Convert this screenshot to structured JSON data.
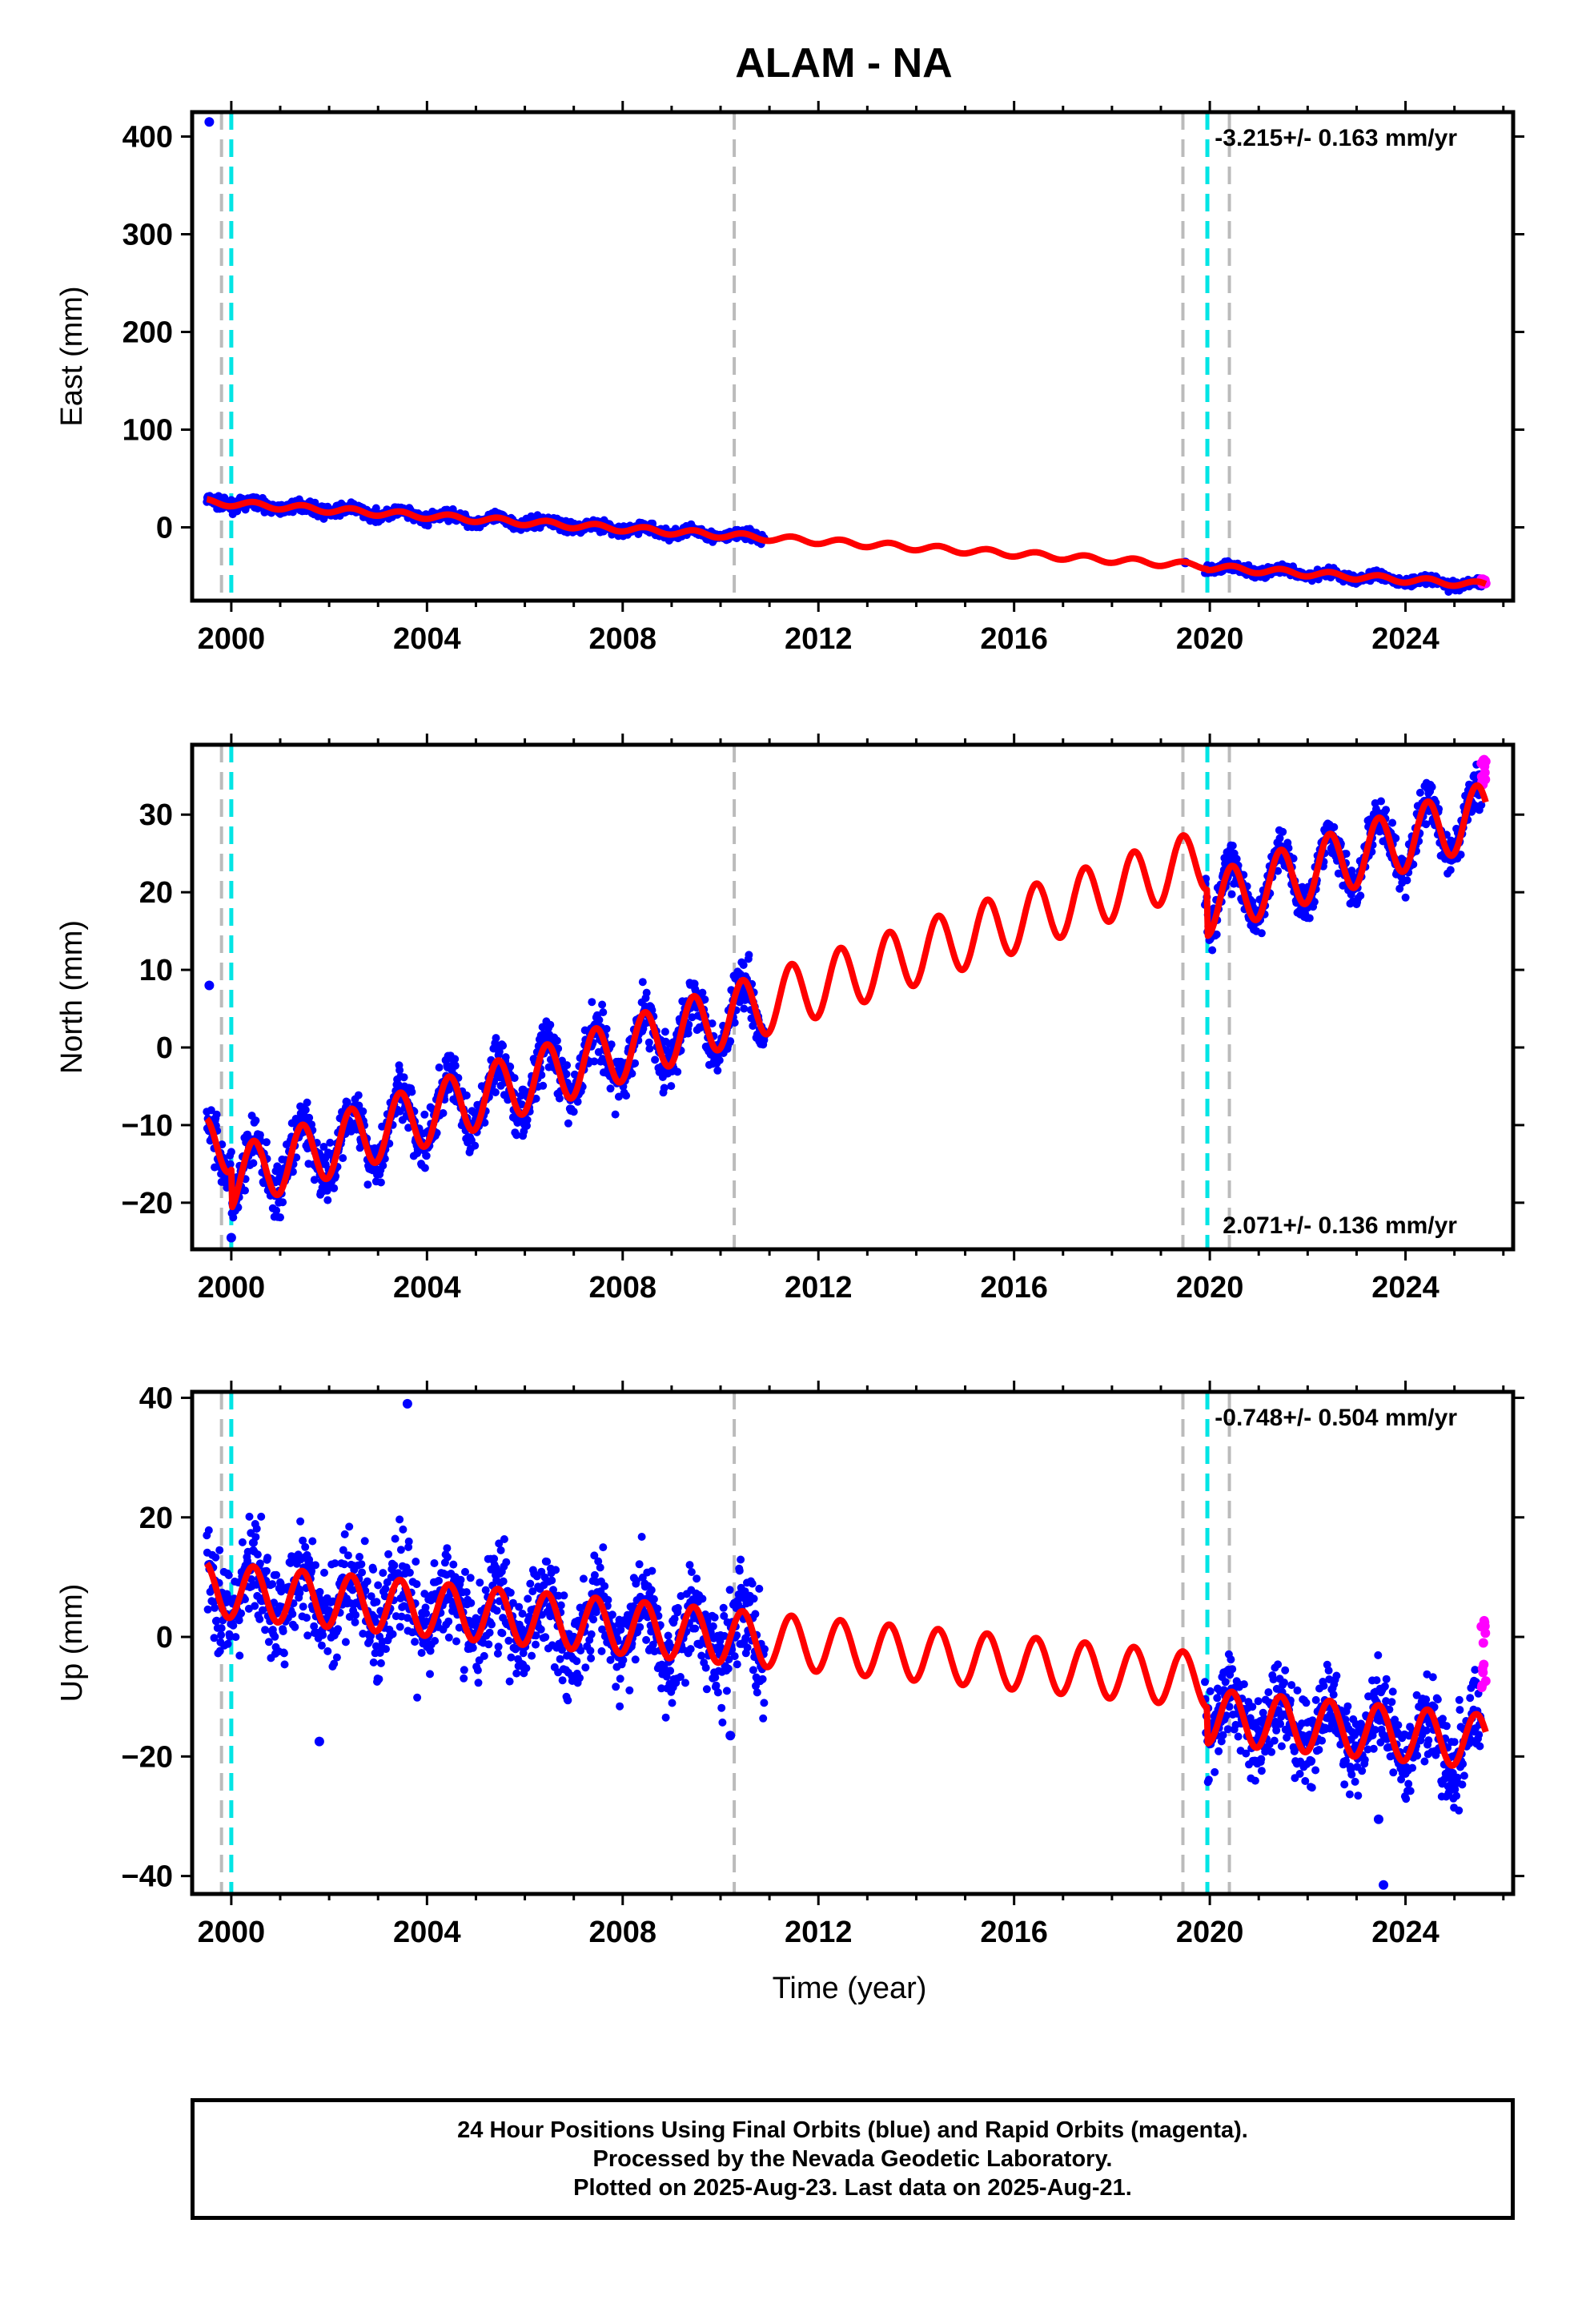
{
  "chart_data": {
    "title": "ALAM - NA",
    "type": "scatter",
    "xlabel": "Time (year)",
    "xlim": [
      1999.2,
      2026.2
    ],
    "xticks": [
      2000,
      2004,
      2008,
      2012,
      2016,
      2020,
      2024
    ],
    "events": {
      "gray_dashed": [
        1999.8,
        2010.28,
        2019.45,
        2020.4
      ],
      "cyan_dashed": [
        2000.0,
        2019.95
      ]
    },
    "colors": {
      "final": "#0000ff",
      "rapid": "#ff00ff",
      "fit": "#ff0000",
      "gray_event": "#bbbbbb",
      "cyan_event": "#00e5e5"
    },
    "panels": [
      {
        "ylabel": "East (mm)",
        "ylim": [
          -75,
          425
        ],
        "yticks": [
          0,
          100,
          200,
          300,
          400
        ],
        "rate_text": "-3.215+/- 0.163 mm/yr",
        "rate_position": "top-right",
        "offsets": [
          {
            "epoch": 1999.55,
            "value": 415
          },
          {
            "epoch": 2019.5,
            "value": -36
          }
        ],
        "trend": {
          "t0": 1999.5,
          "y0": 26,
          "slope": -3.215,
          "annual_amp": 3,
          "jumps": [
            {
              "epoch": 2019.95,
              "size": -1
            }
          ]
        },
        "data_spans": [
          {
            "start": 1999.5,
            "end": 2010.9,
            "scatter": 4
          },
          {
            "start": 2019.9,
            "end": 2025.55,
            "scatter": 3.5
          }
        ],
        "rapid": {
          "start": 2025.55,
          "end": 2025.64,
          "y_range": [
            -58,
            -53
          ]
        }
      },
      {
        "ylabel": "North (mm)",
        "ylim": [
          -26,
          39
        ],
        "yticks": [
          -20,
          -10,
          0,
          10,
          20,
          30
        ],
        "rate_text": "2.071+/- 0.136 mm/yr",
        "rate_position": "bottom-right",
        "offsets": [
          {
            "epoch": 1999.55,
            "value": 8
          },
          {
            "epoch": 2000.0,
            "value": -24.5
          }
        ],
        "trend": {
          "t0": 1999.5,
          "y0": -13,
          "slope": 2.071,
          "annual_amp": 4,
          "jumps": [
            {
              "epoch": 2000.0,
              "size": -5
            },
            {
              "epoch": 2019.95,
              "size": -6
            }
          ]
        },
        "data_spans": [
          {
            "start": 1999.5,
            "end": 2010.9,
            "scatter": 2.5
          },
          {
            "start": 2019.9,
            "end": 2025.55,
            "scatter": 2
          }
        ],
        "rapid": {
          "start": 2025.55,
          "end": 2025.64,
          "y_range": [
            33.5,
            38
          ]
        }
      },
      {
        "ylabel": "Up (mm)",
        "ylim": [
          -43,
          41
        ],
        "yticks": [
          -40,
          -20,
          0,
          20,
          40
        ],
        "rate_text": "-0.748+/- 0.504 mm/yr",
        "rate_position": "top-right",
        "offsets": [
          {
            "epoch": 2003.6,
            "value": 39
          },
          {
            "epoch": 2023.55,
            "value": -41.5
          },
          {
            "epoch": 2023.45,
            "value": -30.5
          },
          {
            "epoch": 2001.8,
            "value": -17.5
          },
          {
            "epoch": 2010.2,
            "value": -16.5
          }
        ],
        "trend": {
          "t0": 1999.5,
          "y0": 8,
          "slope": -0.748,
          "annual_amp": 4.5,
          "jumps": [
            {
              "epoch": 2019.95,
              "size": -6
            }
          ]
        },
        "data_spans": [
          {
            "start": 1999.5,
            "end": 2010.9,
            "scatter": 6
          },
          {
            "start": 2019.9,
            "end": 2025.55,
            "scatter": 5
          }
        ],
        "rapid": {
          "start": 2025.55,
          "end": 2025.64,
          "y_range": [
            -9,
            5
          ]
        }
      }
    ]
  },
  "caption": {
    "line1": "24 Hour Positions Using Final Orbits (blue) and Rapid Orbits (magenta).",
    "line2": "Processed by the Nevada Geodetic Laboratory.",
    "line3": "Plotted on 2025-Aug-23. Last data on 2025-Aug-21."
  }
}
